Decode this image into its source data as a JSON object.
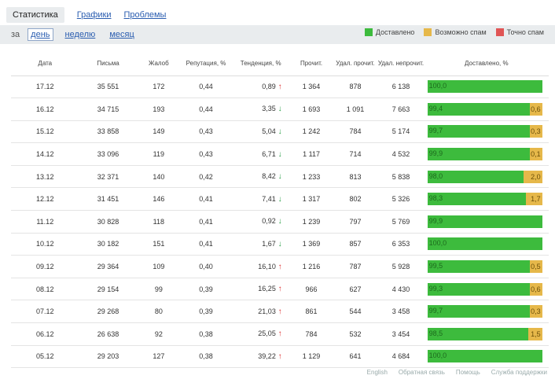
{
  "tabs": [
    {
      "label": "Статистика",
      "active": true
    },
    {
      "label": "Графики",
      "active": false
    },
    {
      "label": "Проблемы",
      "active": false
    }
  ],
  "period": {
    "prefix": "за",
    "options": [
      {
        "label": "день",
        "selected": true
      },
      {
        "label": "неделю",
        "selected": false
      },
      {
        "label": "месяц",
        "selected": false
      }
    ]
  },
  "legend": [
    {
      "label": "Доставлено",
      "color": "#3dbb3d"
    },
    {
      "label": "Возможно спам",
      "color": "#e6b84a"
    },
    {
      "label": "Точно спам",
      "color": "#e05555"
    }
  ],
  "columns": [
    "Дата",
    "Письма",
    "Жалоб",
    "Репутация, %",
    "Тенденция, %",
    "Прочит.",
    "Удал. прочит.",
    "Удал. непрочит.",
    "Доставлено, %"
  ],
  "rows": [
    {
      "date": "17.12",
      "letters": "35 551",
      "complaints": "172",
      "reputation": "0,44",
      "trend": "0,89",
      "trend_dir": "up",
      "read": "1 364",
      "del_read": "878",
      "del_unread": "6 138",
      "delivered": "100,0",
      "maybe_spam": ""
    },
    {
      "date": "16.12",
      "letters": "34 715",
      "complaints": "193",
      "reputation": "0,44",
      "trend": "3,35",
      "trend_dir": "down",
      "read": "1 693",
      "del_read": "1 091",
      "del_unread": "7 663",
      "delivered": "99,4",
      "maybe_spam": "0,6"
    },
    {
      "date": "15.12",
      "letters": "33 858",
      "complaints": "149",
      "reputation": "0,43",
      "trend": "5,04",
      "trend_dir": "down",
      "read": "1 242",
      "del_read": "784",
      "del_unread": "5 174",
      "delivered": "99,7",
      "maybe_spam": "0,3"
    },
    {
      "date": "14.12",
      "letters": "33 096",
      "complaints": "119",
      "reputation": "0,43",
      "trend": "6,71",
      "trend_dir": "down",
      "read": "1 117",
      "del_read": "714",
      "del_unread": "4 532",
      "delivered": "99,9",
      "maybe_spam": "0,1"
    },
    {
      "date": "13.12",
      "letters": "32 371",
      "complaints": "140",
      "reputation": "0,42",
      "trend": "8,42",
      "trend_dir": "down",
      "read": "1 233",
      "del_read": "813",
      "del_unread": "5 838",
      "delivered": "98,0",
      "maybe_spam": "2,0"
    },
    {
      "date": "12.12",
      "letters": "31 451",
      "complaints": "146",
      "reputation": "0,41",
      "trend": "7,41",
      "trend_dir": "down",
      "read": "1 317",
      "del_read": "802",
      "del_unread": "5 326",
      "delivered": "98,3",
      "maybe_spam": "1,7"
    },
    {
      "date": "11.12",
      "letters": "30 828",
      "complaints": "118",
      "reputation": "0,41",
      "trend": "0,92",
      "trend_dir": "down",
      "read": "1 239",
      "del_read": "797",
      "del_unread": "5 769",
      "delivered": "99,9",
      "maybe_spam": ""
    },
    {
      "date": "10.12",
      "letters": "30 182",
      "complaints": "151",
      "reputation": "0,41",
      "trend": "1,67",
      "trend_dir": "down",
      "read": "1 369",
      "del_read": "857",
      "del_unread": "6 353",
      "delivered": "100,0",
      "maybe_spam": ""
    },
    {
      "date": "09.12",
      "letters": "29 364",
      "complaints": "109",
      "reputation": "0,40",
      "trend": "16,10",
      "trend_dir": "up",
      "read": "1 216",
      "del_read": "787",
      "del_unread": "5 928",
      "delivered": "99,5",
      "maybe_spam": "0,5"
    },
    {
      "date": "08.12",
      "letters": "29 154",
      "complaints": "99",
      "reputation": "0,39",
      "trend": "16,25",
      "trend_dir": "up",
      "read": "966",
      "del_read": "627",
      "del_unread": "4 430",
      "delivered": "99,3",
      "maybe_spam": "0,6"
    },
    {
      "date": "07.12",
      "letters": "29 268",
      "complaints": "80",
      "reputation": "0,39",
      "trend": "21,03",
      "trend_dir": "up",
      "read": "861",
      "del_read": "544",
      "del_unread": "3 458",
      "delivered": "99,7",
      "maybe_spam": "0,3"
    },
    {
      "date": "06.12",
      "letters": "26 638",
      "complaints": "92",
      "reputation": "0,38",
      "trend": "25,05",
      "trend_dir": "up",
      "read": "784",
      "del_read": "532",
      "del_unread": "3 454",
      "delivered": "98,5",
      "maybe_spam": "1,5"
    },
    {
      "date": "05.12",
      "letters": "29 203",
      "complaints": "127",
      "reputation": "0,38",
      "trend": "39,22",
      "trend_dir": "up",
      "read": "1 129",
      "del_read": "641",
      "del_unread": "4 684",
      "delivered": "100,0",
      "maybe_spam": ""
    }
  ],
  "footer": [
    "English",
    "Обратная связь",
    "Помощь",
    "Служба поддержки"
  ]
}
